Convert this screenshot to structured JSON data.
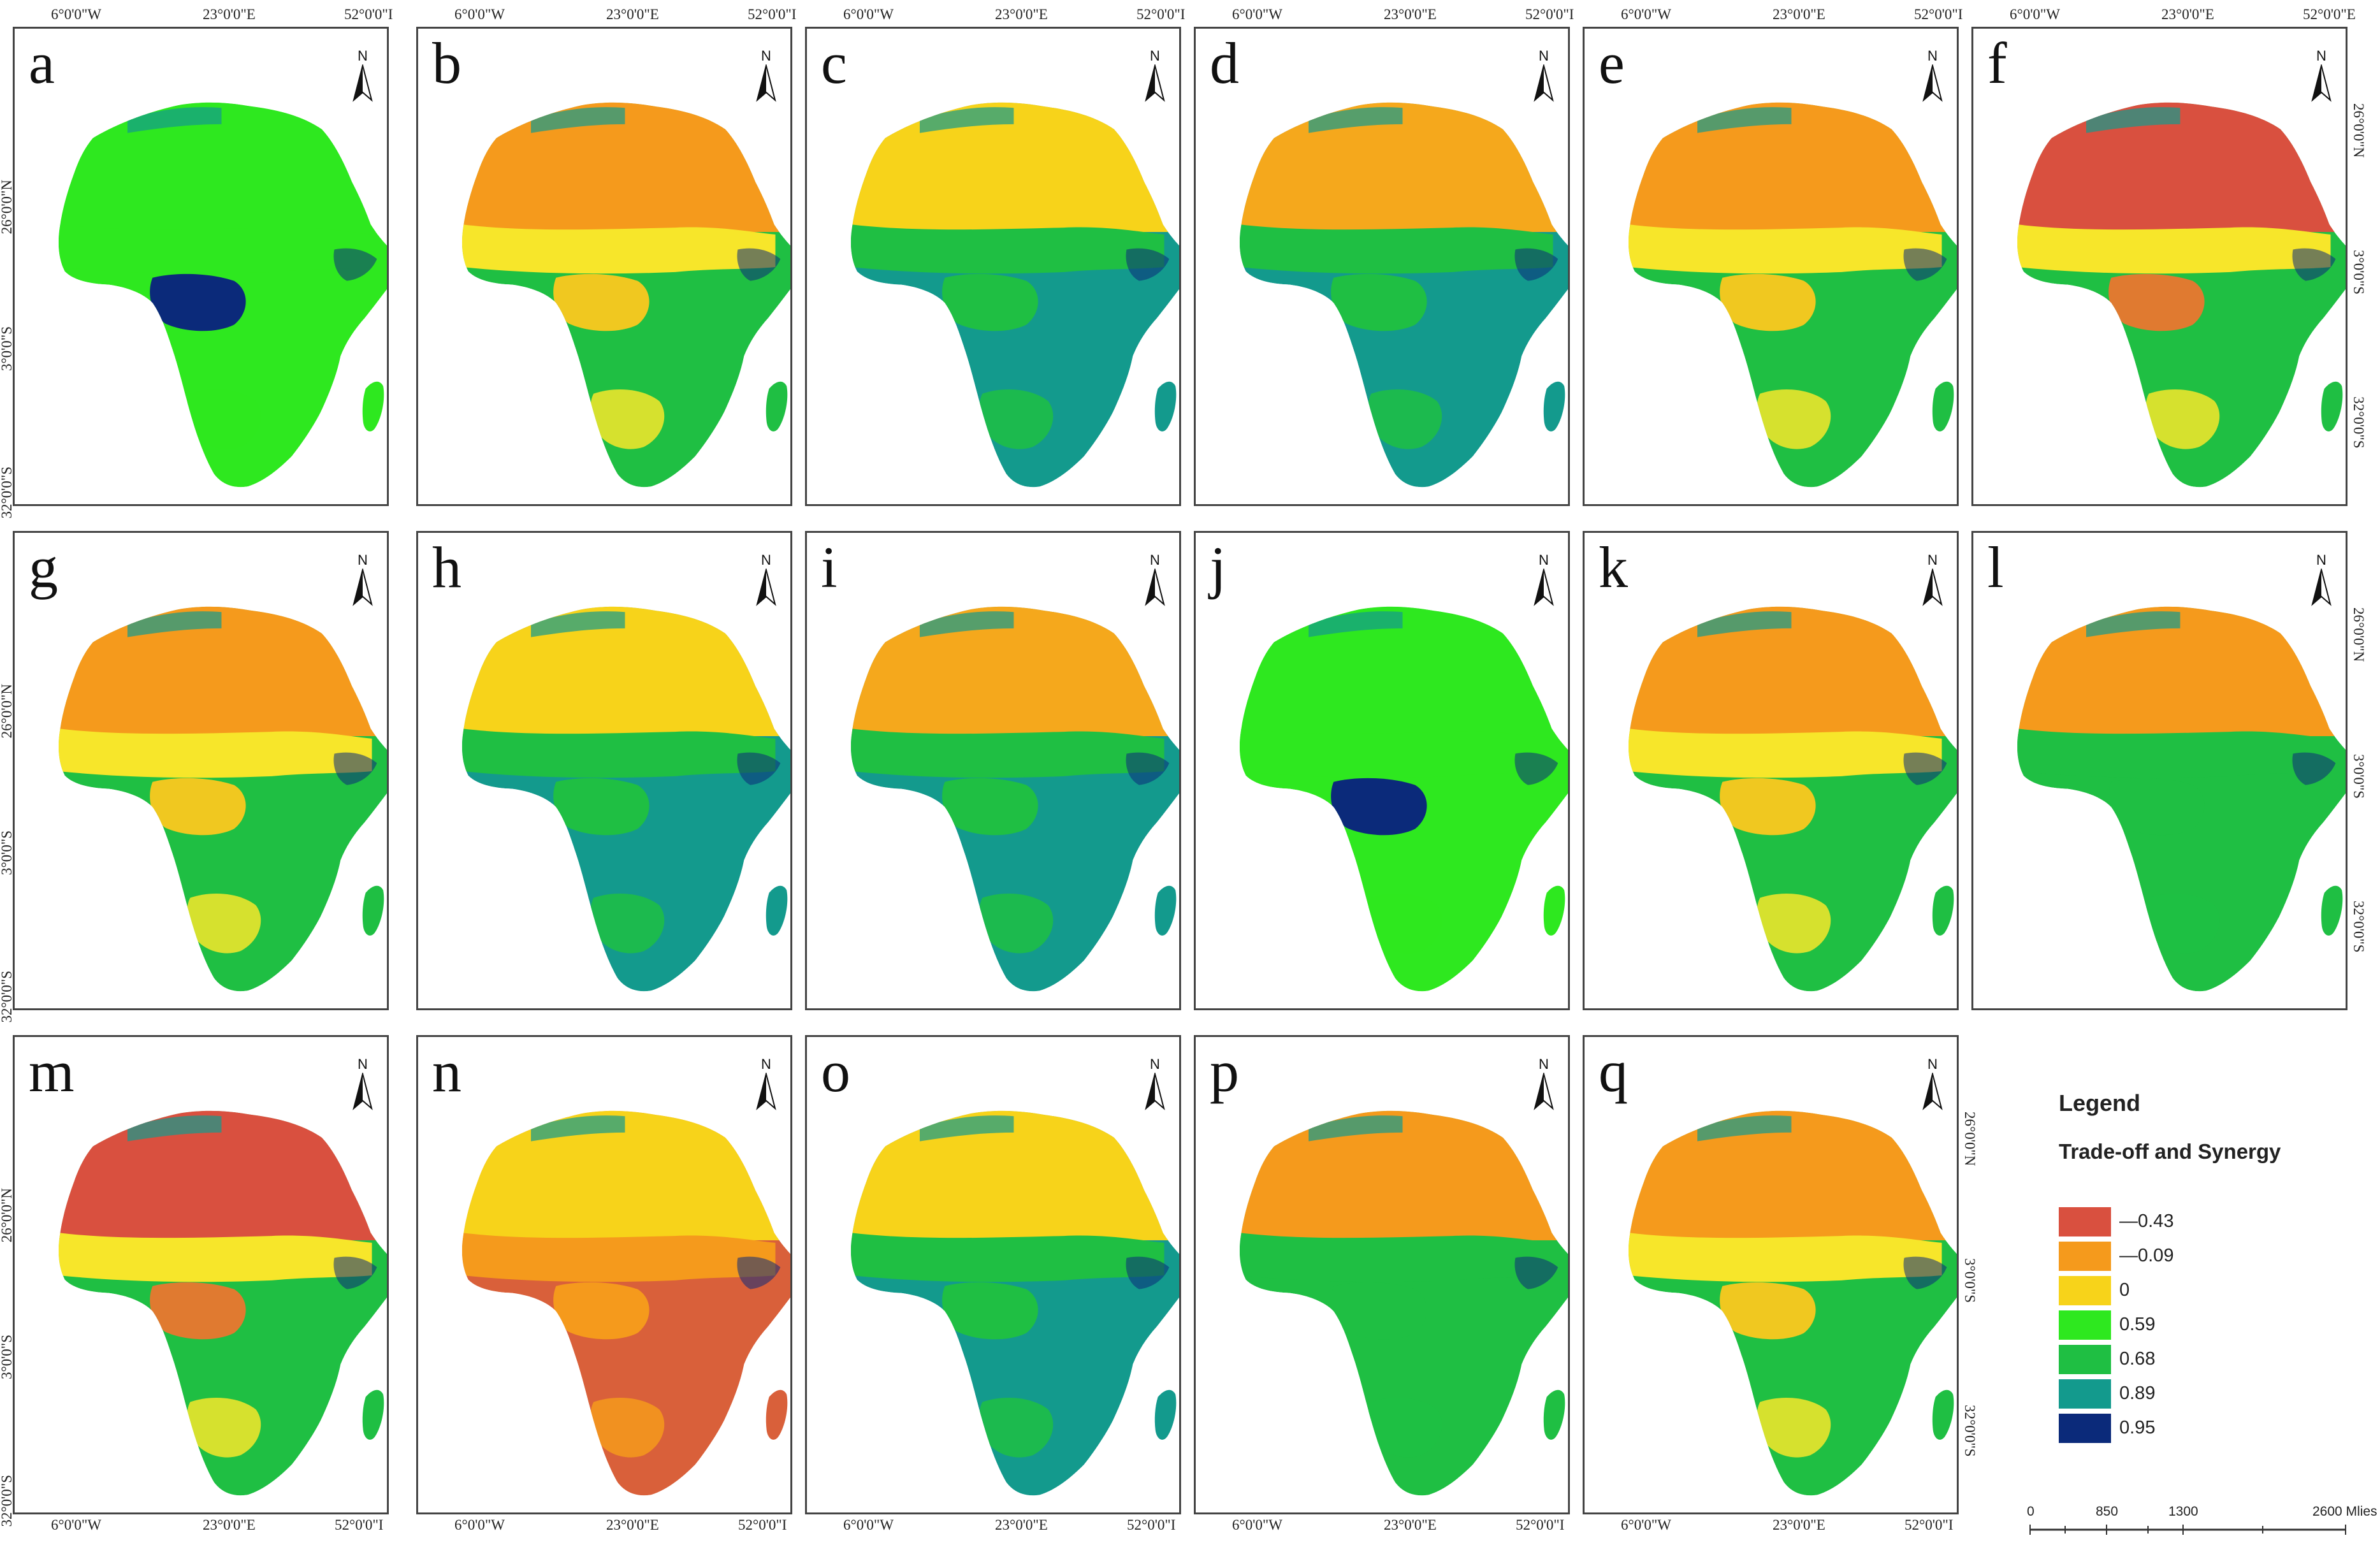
{
  "panels": [
    {
      "letter": "a",
      "scheme": "a"
    },
    {
      "letter": "b",
      "scheme": "b"
    },
    {
      "letter": "c",
      "scheme": "c"
    },
    {
      "letter": "d",
      "scheme": "d"
    },
    {
      "letter": "e",
      "scheme": "b"
    },
    {
      "letter": "f",
      "scheme": "f"
    },
    {
      "letter": "g",
      "scheme": "b"
    },
    {
      "letter": "h",
      "scheme": "c"
    },
    {
      "letter": "i",
      "scheme": "d"
    },
    {
      "letter": "j",
      "scheme": "a"
    },
    {
      "letter": "k",
      "scheme": "b"
    },
    {
      "letter": "l",
      "scheme": "l"
    },
    {
      "letter": "m",
      "scheme": "f"
    },
    {
      "letter": "n",
      "scheme": "n"
    },
    {
      "letter": "o",
      "scheme": "c"
    },
    {
      "letter": "p",
      "scheme": "l"
    },
    {
      "letter": "q",
      "scheme": "b"
    }
  ],
  "coords": {
    "top": [
      "6°0'0\"W",
      "23°0'0\"E",
      "52°0'0\"I"
    ],
    "top_last": [
      "6°0'0\"W",
      "23°0'0\"E",
      "52°0'0\"E"
    ],
    "bottom": [
      "6°0'0\"W",
      "23°0'0\"E",
      "52°0'0\"I"
    ],
    "left": [
      "26°0'0\"N",
      "3°0'0\"S",
      "32°0'0\"S"
    ],
    "right": [
      "26°0'0\"N",
      "3°0'0\"S",
      "32°0'0\"S"
    ]
  },
  "north_label": "N",
  "legend": {
    "title": "Legend",
    "subtitle": "Trade-off and Synergy",
    "items": [
      {
        "label": "—0.43",
        "color": "#d9503f"
      },
      {
        "label": "—0.09",
        "color": "#f59a1c"
      },
      {
        "label": "0",
        "color": "#f7d31a"
      },
      {
        "label": "0.59",
        "color": "#2ee81f"
      },
      {
        "label": "0.68",
        "color": "#1fbf43"
      },
      {
        "label": "0.89",
        "color": "#139a8d"
      },
      {
        "label": "0.95",
        "color": "#0b2a7a"
      }
    ]
  },
  "scale_bar": {
    "labels": [
      "0",
      "850",
      "1300",
      "2600 Mlies"
    ]
  },
  "palette": {
    "a": [
      "#2ee81f",
      "#2ee81f",
      "#2ee81f",
      "#0b2a7a"
    ],
    "b": [
      "#f59a1c",
      "#f7e62a",
      "#1fbf43",
      "#f0c820"
    ],
    "c": [
      "#f7d31a",
      "#1fbf43",
      "#139a8d",
      "#1fbf43"
    ],
    "d": [
      "#f5a81c",
      "#1fbf43",
      "#139a8d",
      "#1fbf43"
    ],
    "f": [
      "#d9503f",
      "#f7e62a",
      "#1fbf43",
      "#e07a30"
    ],
    "l": [
      "#f59a1c",
      "#1fbf43",
      "#1fbf43",
      "#1fbf43"
    ],
    "n": [
      "#f7d31a",
      "#f59a1c",
      "#d9603a",
      "#f59a1c"
    ]
  }
}
